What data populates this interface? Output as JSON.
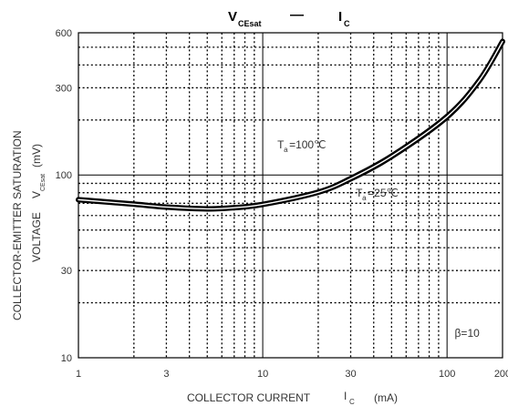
{
  "chart_data": {
    "type": "line",
    "title": {
      "v": "V",
      "v_sub": "CEsat",
      "dash": "—",
      "i": "I",
      "i_sub": "C"
    },
    "xlabel": {
      "text": "COLLECTOR CURRENT",
      "i": "I",
      "i_sub": "C",
      "unit": "(mA)"
    },
    "ylabel": {
      "line1": "COLLECTOR-EMITTER SATURATION",
      "line2": "VOLTAGE",
      "v": "V",
      "v_sub": "CEsat",
      "unit": "(mV)"
    },
    "x_scale": "log",
    "y_scale": "log",
    "xlim": [
      1,
      200
    ],
    "ylim": [
      10,
      600
    ],
    "x_ticks": [
      {
        "value": 1,
        "label": "1"
      },
      {
        "value": 3,
        "label": "3"
      },
      {
        "value": 10,
        "label": "10"
      },
      {
        "value": 30,
        "label": "30"
      },
      {
        "value": 100,
        "label": "100"
      },
      {
        "value": 200,
        "label": "200"
      }
    ],
    "y_ticks": [
      {
        "value": 10,
        "label": "10"
      },
      {
        "value": 30,
        "label": "30"
      },
      {
        "value": 100,
        "label": "100"
      },
      {
        "value": 300,
        "label": "300"
      },
      {
        "value": 600,
        "label": "600"
      }
    ],
    "grid": true,
    "series": [
      {
        "name": "Ta=100°C",
        "x": [
          1,
          2,
          3,
          5,
          7,
          10,
          20,
          30,
          50,
          100,
          150,
          200
        ],
        "y": [
          74,
          70,
          67.5,
          66,
          67,
          70,
          82,
          98,
          130,
          215,
          340,
          555
        ]
      },
      {
        "name": "Ta=25°C",
        "x": [
          1,
          2,
          3,
          5,
          7,
          10,
          20,
          30,
          50,
          100,
          150,
          200
        ],
        "y": [
          72.5,
          68.5,
          66,
          64.5,
          65.5,
          68,
          79,
          93,
          123,
          202,
          320,
          520
        ]
      }
    ],
    "annotations": [
      {
        "key": "t100",
        "t": "T",
        "sub": "a",
        "rest": "=100℃",
        "x": 12,
        "y": 140
      },
      {
        "key": "t25",
        "t": "T",
        "sub": "a",
        "rest": "=25℃",
        "x": 32,
        "y": 76
      },
      {
        "key": "beta",
        "text": "β=10",
        "x": 110,
        "y": 13
      }
    ]
  }
}
